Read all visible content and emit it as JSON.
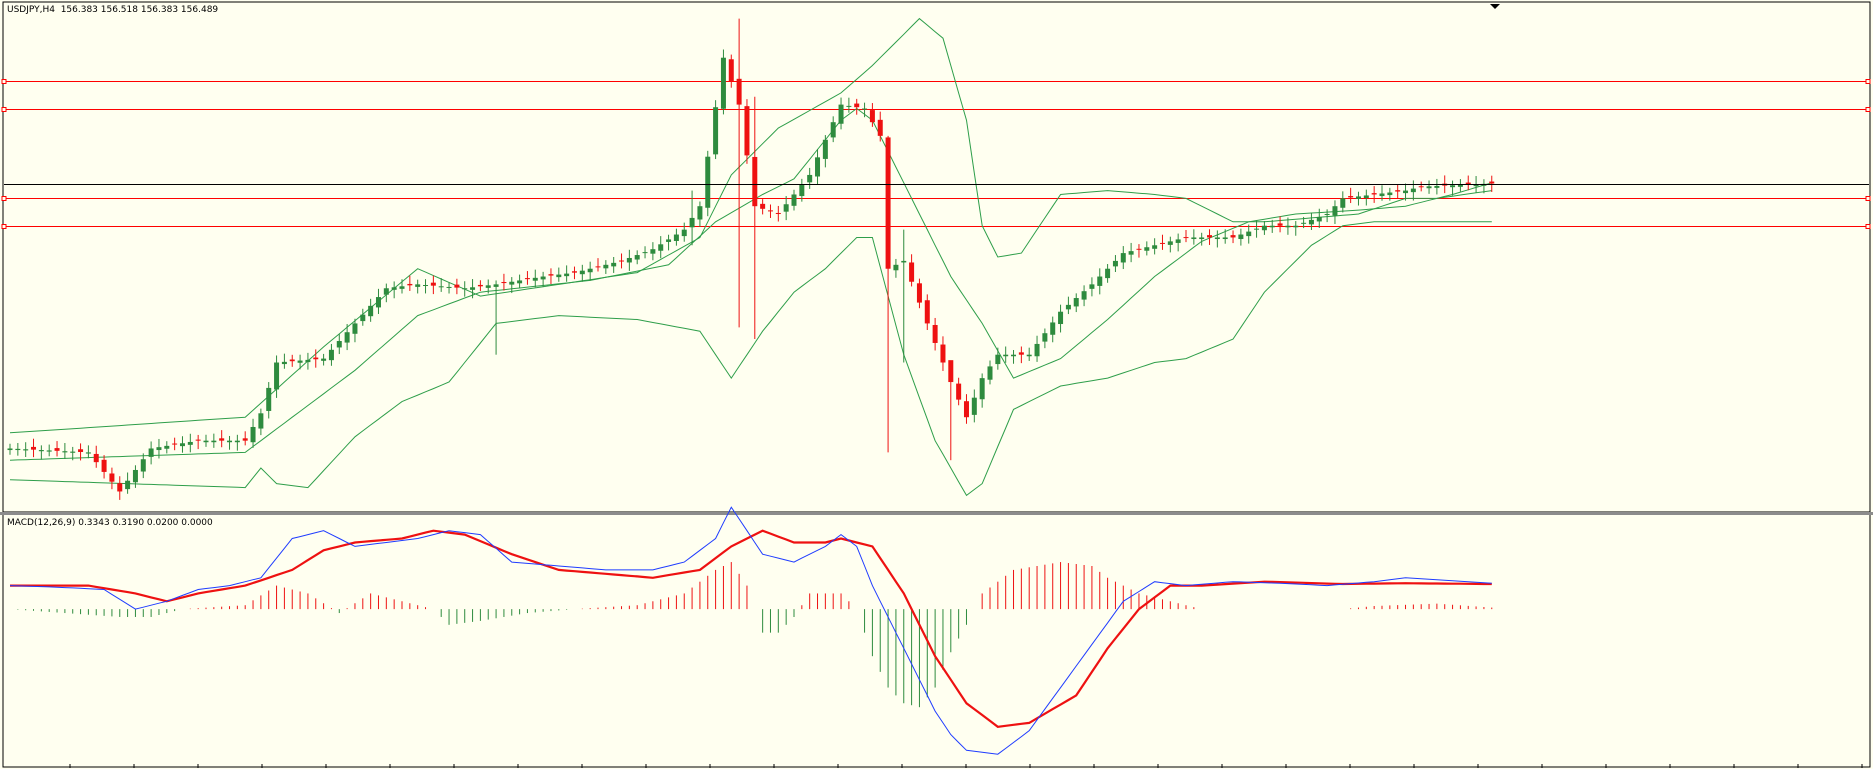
{
  "colors": {
    "background": "#fffff0",
    "frame": "#000000",
    "bull": "#2e8b3e",
    "bear": "#ee1111",
    "bands": "#2e9e4a",
    "level_line": "#ff0000",
    "price_line": "#000000",
    "macd_line": "#1f3cff",
    "signal_line": "#ee1111",
    "hist_up": "#ee1111",
    "hist_down": "#2e8b3e"
  },
  "chart_data": [
    {
      "type": "candlestick",
      "title": "USDJPY,H4  156.383 156.518 156.383 156.489",
      "symbol": "USDJPY",
      "timeframe": "H4",
      "ohlc_current": [
        156.383,
        156.518,
        156.383,
        156.489
      ],
      "overlays": [
        "Bollinger Bands"
      ],
      "horizontal_levels": [
        157.8,
        157.45,
        156.3,
        155.95
      ],
      "current_price_line": 156.489,
      "ylim": [
        152.3,
        158.8
      ],
      "x_count": 190,
      "grid": false,
      "anchors": {
        "close": [
          [
            0,
            153.1
          ],
          [
            10,
            153.05
          ],
          [
            14,
            152.55
          ],
          [
            18,
            153.1
          ],
          [
            24,
            153.2
          ],
          [
            30,
            153.2
          ],
          [
            32,
            153.55
          ],
          [
            34,
            154.2
          ],
          [
            40,
            154.25
          ],
          [
            44,
            154.7
          ],
          [
            48,
            155.15
          ],
          [
            52,
            155.2
          ],
          [
            58,
            155.15
          ],
          [
            62,
            155.2
          ],
          [
            68,
            155.3
          ],
          [
            72,
            155.35
          ],
          [
            78,
            155.5
          ],
          [
            82,
            155.65
          ],
          [
            86,
            155.9
          ],
          [
            88,
            156.2
          ],
          [
            91,
            158.1
          ],
          [
            93,
            157.5
          ],
          [
            95,
            156.2
          ],
          [
            98,
            156.1
          ],
          [
            102,
            156.6
          ],
          [
            106,
            157.5
          ],
          [
            109,
            157.45
          ],
          [
            111,
            157.1
          ],
          [
            112,
            155.4
          ],
          [
            114,
            155.5
          ],
          [
            117,
            154.7
          ],
          [
            120,
            153.95
          ],
          [
            122,
            153.5
          ],
          [
            124,
            154.0
          ],
          [
            126,
            154.3
          ],
          [
            130,
            154.3
          ],
          [
            134,
            154.85
          ],
          [
            138,
            155.2
          ],
          [
            142,
            155.6
          ],
          [
            146,
            155.7
          ],
          [
            150,
            155.8
          ],
          [
            156,
            155.8
          ],
          [
            160,
            155.95
          ],
          [
            164,
            155.95
          ],
          [
            168,
            156.1
          ],
          [
            170,
            156.3
          ],
          [
            174,
            156.35
          ],
          [
            178,
            156.4
          ],
          [
            180,
            156.45
          ],
          [
            189,
            156.49
          ]
        ],
        "upper_band": [
          [
            0,
            153.3
          ],
          [
            30,
            153.5
          ],
          [
            40,
            154.4
          ],
          [
            52,
            155.4
          ],
          [
            60,
            155.05
          ],
          [
            80,
            155.35
          ],
          [
            88,
            155.8
          ],
          [
            92,
            156.6
          ],
          [
            98,
            157.2
          ],
          [
            106,
            157.65
          ],
          [
            110,
            158.0
          ],
          [
            114,
            158.4
          ],
          [
            116,
            158.6
          ],
          [
            119,
            158.35
          ],
          [
            122,
            157.3
          ],
          [
            124,
            155.95
          ],
          [
            126,
            155.55
          ],
          [
            129,
            155.6
          ],
          [
            134,
            156.35
          ],
          [
            140,
            156.4
          ],
          [
            146,
            156.35
          ],
          [
            150,
            156.3
          ],
          [
            156,
            156.0
          ],
          [
            160,
            156.0
          ],
          [
            166,
            156.05
          ],
          [
            172,
            156.1
          ],
          [
            178,
            156.3
          ],
          [
            182,
            156.3
          ],
          [
            189,
            156.4
          ]
        ],
        "middle_band": [
          [
            0,
            152.95
          ],
          [
            30,
            153.05
          ],
          [
            36,
            153.5
          ],
          [
            44,
            154.1
          ],
          [
            52,
            154.8
          ],
          [
            60,
            155.1
          ],
          [
            74,
            155.25
          ],
          [
            84,
            155.45
          ],
          [
            90,
            156.0
          ],
          [
            96,
            156.35
          ],
          [
            100,
            156.55
          ],
          [
            106,
            157.3
          ],
          [
            108,
            157.45
          ],
          [
            110,
            157.3
          ],
          [
            114,
            156.5
          ],
          [
            120,
            155.3
          ],
          [
            124,
            154.7
          ],
          [
            128,
            154.0
          ],
          [
            134,
            154.25
          ],
          [
            140,
            154.75
          ],
          [
            146,
            155.3
          ],
          [
            152,
            155.75
          ],
          [
            158,
            156.0
          ],
          [
            164,
            156.1
          ],
          [
            172,
            156.15
          ],
          [
            178,
            156.2
          ],
          [
            184,
            156.35
          ],
          [
            189,
            156.5
          ]
        ],
        "lower_band": [
          [
            0,
            152.7
          ],
          [
            30,
            152.6
          ],
          [
            32,
            152.85
          ],
          [
            34,
            152.65
          ],
          [
            38,
            152.6
          ],
          [
            44,
            153.25
          ],
          [
            50,
            153.7
          ],
          [
            56,
            153.95
          ],
          [
            62,
            154.7
          ],
          [
            70,
            154.8
          ],
          [
            80,
            154.75
          ],
          [
            88,
            154.6
          ],
          [
            92,
            154.0
          ],
          [
            96,
            154.6
          ],
          [
            100,
            155.1
          ],
          [
            104,
            155.4
          ],
          [
            108,
            155.8
          ],
          [
            110,
            155.8
          ],
          [
            114,
            154.3
          ],
          [
            118,
            153.2
          ],
          [
            122,
            152.5
          ],
          [
            124,
            152.65
          ],
          [
            128,
            153.6
          ],
          [
            134,
            153.9
          ],
          [
            140,
            154.0
          ],
          [
            146,
            154.2
          ],
          [
            150,
            154.25
          ],
          [
            156,
            154.5
          ],
          [
            160,
            155.1
          ],
          [
            166,
            155.7
          ],
          [
            170,
            155.95
          ],
          [
            174,
            156.0
          ],
          [
            180,
            156.0
          ],
          [
            189,
            156.0
          ]
        ]
      },
      "spikes": [
        {
          "i": 93,
          "high": 158.6,
          "low": 154.65
        },
        {
          "i": 95,
          "high": 157.6,
          "low": 154.5
        },
        {
          "i": 112,
          "high": 157.1,
          "low": 153.05
        },
        {
          "i": 114,
          "high": 155.9,
          "low": 154.2
        },
        {
          "i": 120,
          "high": 154.1,
          "low": 152.95
        },
        {
          "i": 62,
          "high": 155.25,
          "low": 154.3
        },
        {
          "i": 87,
          "high": 156.4,
          "low": 155.7
        }
      ]
    },
    {
      "type": "line",
      "title": "MACD(12,26,9) 0.3343 0.3190 0.0200 0.0000",
      "indicator": "MACD(12,26,9)",
      "values_shown": [
        0.3343,
        0.319,
        0.02,
        0.0
      ],
      "ylim": [
        -2.0,
        1.2
      ],
      "x_count": 190,
      "grid": false,
      "series": [
        {
          "role": "macd",
          "anchors": [
            [
              0,
              0.3
            ],
            [
              6,
              0.28
            ],
            [
              12,
              0.25
            ],
            [
              16,
              0.0
            ],
            [
              20,
              0.1
            ],
            [
              24,
              0.25
            ],
            [
              28,
              0.3
            ],
            [
              32,
              0.4
            ],
            [
              36,
              0.9
            ],
            [
              40,
              1.0
            ],
            [
              44,
              0.8
            ],
            [
              48,
              0.85
            ],
            [
              52,
              0.9
            ],
            [
              56,
              1.0
            ],
            [
              60,
              0.95
            ],
            [
              64,
              0.6
            ],
            [
              70,
              0.55
            ],
            [
              76,
              0.5
            ],
            [
              82,
              0.5
            ],
            [
              86,
              0.6
            ],
            [
              90,
              0.9
            ],
            [
              92,
              1.3
            ],
            [
              96,
              0.7
            ],
            [
              100,
              0.6
            ],
            [
              104,
              0.8
            ],
            [
              106,
              0.95
            ],
            [
              108,
              0.8
            ],
            [
              110,
              0.3
            ],
            [
              114,
              -0.5
            ],
            [
              118,
              -1.3
            ],
            [
              120,
              -1.6
            ],
            [
              122,
              -1.8
            ],
            [
              126,
              -1.85
            ],
            [
              130,
              -1.55
            ],
            [
              134,
              -1.0
            ],
            [
              138,
              -0.45
            ],
            [
              142,
              0.1
            ],
            [
              146,
              0.35
            ],
            [
              150,
              0.3
            ],
            [
              156,
              0.35
            ],
            [
              162,
              0.33
            ],
            [
              168,
              0.3
            ],
            [
              174,
              0.35
            ],
            [
              178,
              0.4
            ],
            [
              189,
              0.33
            ]
          ]
        },
        {
          "role": "signal",
          "anchors": [
            [
              0,
              0.3
            ],
            [
              10,
              0.3
            ],
            [
              16,
              0.2
            ],
            [
              20,
              0.1
            ],
            [
              24,
              0.2
            ],
            [
              30,
              0.3
            ],
            [
              36,
              0.5
            ],
            [
              40,
              0.75
            ],
            [
              44,
              0.85
            ],
            [
              50,
              0.9
            ],
            [
              54,
              1.0
            ],
            [
              58,
              0.95
            ],
            [
              64,
              0.7
            ],
            [
              70,
              0.5
            ],
            [
              76,
              0.45
            ],
            [
              82,
              0.4
            ],
            [
              88,
              0.5
            ],
            [
              92,
              0.8
            ],
            [
              96,
              1.0
            ],
            [
              100,
              0.85
            ],
            [
              104,
              0.85
            ],
            [
              106,
              0.9
            ],
            [
              110,
              0.8
            ],
            [
              114,
              0.2
            ],
            [
              118,
              -0.6
            ],
            [
              122,
              -1.2
            ],
            [
              126,
              -1.5
            ],
            [
              130,
              -1.45
            ],
            [
              136,
              -1.1
            ],
            [
              140,
              -0.5
            ],
            [
              144,
              0.0
            ],
            [
              148,
              0.3
            ],
            [
              152,
              0.3
            ],
            [
              160,
              0.35
            ],
            [
              170,
              0.32
            ],
            [
              178,
              0.33
            ],
            [
              189,
              0.32
            ]
          ]
        },
        {
          "role": "histogram",
          "anchors": [
            [
              0,
              0.0
            ],
            [
              14,
              -0.1
            ],
            [
              18,
              -0.1
            ],
            [
              22,
              0.0
            ],
            [
              30,
              0.05
            ],
            [
              34,
              0.3
            ],
            [
              38,
              0.2
            ],
            [
              42,
              -0.05
            ],
            [
              46,
              0.2
            ],
            [
              50,
              0.1
            ],
            [
              54,
              0.0
            ],
            [
              56,
              -0.2
            ],
            [
              60,
              -0.15
            ],
            [
              66,
              -0.05
            ],
            [
              72,
              0.0
            ],
            [
              80,
              0.05
            ],
            [
              86,
              0.2
            ],
            [
              90,
              0.5
            ],
            [
              92,
              0.6
            ],
            [
              94,
              0.3
            ],
            [
              96,
              -0.3
            ],
            [
              98,
              -0.3
            ],
            [
              100,
              -0.1
            ],
            [
              102,
              0.2
            ],
            [
              106,
              0.2
            ],
            [
              108,
              0.0
            ],
            [
              110,
              -0.6
            ],
            [
              112,
              -1.0
            ],
            [
              114,
              -1.2
            ],
            [
              116,
              -1.25
            ],
            [
              118,
              -1.0
            ],
            [
              120,
              -0.55
            ],
            [
              122,
              -0.2
            ],
            [
              124,
              0.2
            ],
            [
              128,
              0.5
            ],
            [
              134,
              0.6
            ],
            [
              138,
              0.55
            ],
            [
              140,
              0.4
            ],
            [
              144,
              0.2
            ],
            [
              148,
              0.1
            ],
            [
              152,
              0.0
            ],
            [
              156,
              0.0
            ],
            [
              170,
              0.0
            ],
            [
              174,
              0.04
            ],
            [
              182,
              0.07
            ],
            [
              189,
              0.02
            ]
          ]
        }
      ]
    }
  ]
}
